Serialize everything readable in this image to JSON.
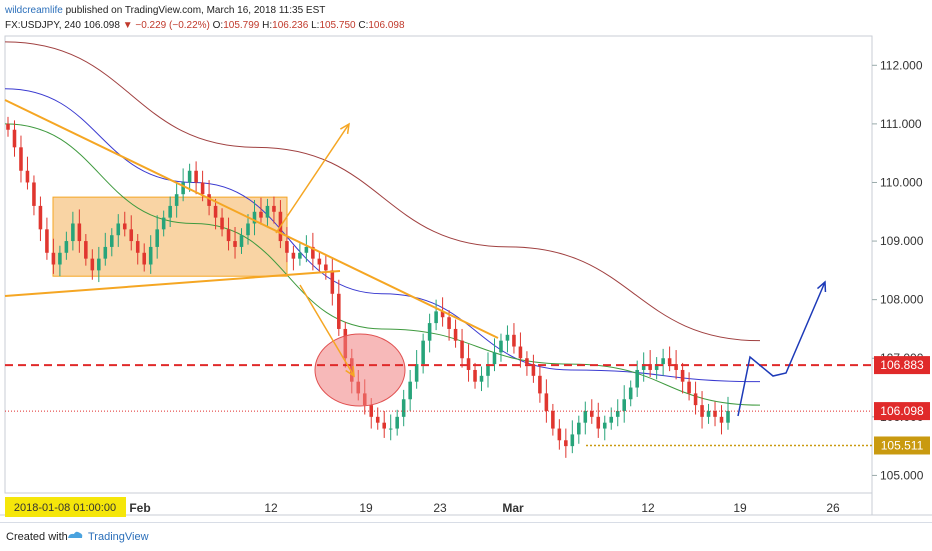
{
  "header": {
    "author": "wildcreamlife",
    "published_text": "published on TradingView.com, March 16, 2018 11:35 EST",
    "symbol_line": "FX:USDJPY, 240",
    "last_price": "106.098",
    "change_arrow": "▼",
    "change": "−0.229 (−0.22%)",
    "open_label": "O:",
    "open": "105.799",
    "high_label": "H:",
    "high": "106.236",
    "low_label": "L:",
    "low": "105.750",
    "close_label": "C:",
    "close": "106.098"
  },
  "footer": {
    "created_with": "Created with",
    "brand": "TradingView"
  },
  "colors": {
    "up": "#27a47a",
    "down": "#e0362f",
    "ma_red": "#a04040",
    "ma_blue": "#3a3ad0",
    "ma_green": "#3f9a3f",
    "orange": "#f5a623",
    "box": "#f7c27e",
    "dashed_red": "#e02a2a",
    "yellow_line": "#c99a10",
    "arrow_blue": "#1d3ab8",
    "ellipse": "#f08080"
  },
  "chart_data": {
    "type": "candlestick",
    "ylim": [
      104.7,
      112.5
    ],
    "y_ticks": [
      "112.000",
      "111.000",
      "110.000",
      "109.000",
      "108.000",
      "107.000",
      "106.000",
      "105.000"
    ],
    "x_ticks": [
      "Feb",
      "12",
      "19",
      "23",
      "Mar",
      "12",
      "19",
      "26"
    ],
    "start_date_label": "2018-01-08 01:00:00",
    "price_labels": [
      {
        "value": 106.883,
        "text": "106.883",
        "color": "#e02a2a"
      },
      {
        "value": 106.098,
        "text": "106.098",
        "color": "#e02a2a"
      },
      {
        "value": 105.511,
        "text": "105.511",
        "color": "#c99a10"
      }
    ],
    "horizontal_levels": [
      {
        "name": "resistance",
        "value": 106.883,
        "style": "dashed"
      },
      {
        "name": "last-price",
        "value": 106.098,
        "style": "dotted"
      },
      {
        "name": "support",
        "value": 105.511,
        "style": "dotted"
      }
    ],
    "candles_close": [
      110.9,
      110.6,
      110.2,
      110.0,
      109.6,
      109.2,
      108.8,
      108.6,
      108.8,
      109.0,
      109.3,
      109.0,
      108.7,
      108.5,
      108.7,
      108.9,
      109.1,
      109.3,
      109.2,
      109.0,
      108.8,
      108.6,
      108.9,
      109.2,
      109.4,
      109.6,
      109.8,
      110.0,
      110.2,
      110.0,
      109.8,
      109.6,
      109.4,
      109.2,
      109.0,
      108.9,
      109.1,
      109.3,
      109.5,
      109.4,
      109.6,
      109.5,
      109.0,
      108.8,
      108.7,
      108.8,
      108.9,
      108.7,
      108.6,
      108.5,
      108.1,
      107.5,
      107.0,
      106.6,
      106.4,
      106.2,
      106.0,
      105.9,
      105.8,
      105.8,
      106.0,
      106.3,
      106.6,
      106.9,
      107.3,
      107.6,
      107.8,
      107.7,
      107.5,
      107.3,
      107.0,
      106.8,
      106.6,
      106.7,
      106.9,
      107.1,
      107.3,
      107.4,
      107.2,
      107.0,
      106.9,
      106.7,
      106.4,
      106.1,
      105.8,
      105.6,
      105.5,
      105.7,
      105.9,
      106.1,
      106.0,
      105.8,
      105.9,
      106.0,
      106.1,
      106.3,
      106.5,
      106.8,
      106.9,
      106.8,
      106.9,
      107.0,
      106.9,
      106.8,
      106.6,
      106.4,
      106.2,
      106.0,
      106.1,
      106.0,
      105.9,
      106.1
    ],
    "ma_red": [
      112.4,
      110.6,
      108.9,
      107.3
    ],
    "ma_blue": [
      111.6,
      110.0,
      108.1,
      106.8,
      106.6
    ],
    "ma_green": [
      111.0,
      109.3,
      107.5,
      106.9,
      106.2
    ],
    "annotations": [
      {
        "type": "rectangle",
        "y_range": [
          108.4,
          109.75
        ]
      },
      {
        "type": "trendline",
        "name": "descending-trendline"
      },
      {
        "type": "trendline",
        "name": "ascending-trendline"
      },
      {
        "type": "ellipse",
        "name": "reversal-zone"
      },
      {
        "type": "arrow",
        "name": "breakout-up-arrow"
      },
      {
        "type": "arrow",
        "name": "breakdown-arrow"
      },
      {
        "type": "arrow",
        "name": "forecast-arrow"
      }
    ]
  }
}
